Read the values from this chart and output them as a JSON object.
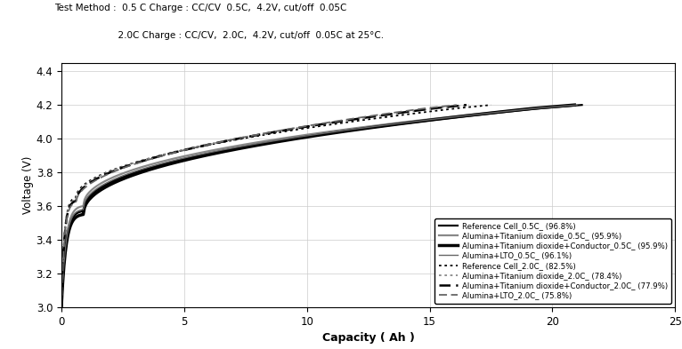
{
  "title_line1": "Test Method :  0.5 C Charge : CC/CV  0.5C,  4.2V, cut/off  0.05C",
  "title_line2": "                      2.0C Charge : CC/CV,  2.0C,  4.2V, cut/off  0.05C at 25°C.",
  "xlabel": "Capacity ( Ah )",
  "ylabel": "Voltage (V)",
  "xlim": [
    0,
    25
  ],
  "ylim": [
    3.0,
    4.45
  ],
  "yticks": [
    3.0,
    3.2,
    3.4,
    3.6,
    3.8,
    4.0,
    4.2,
    4.4
  ],
  "xticks": [
    0,
    5,
    10,
    15,
    20,
    25
  ],
  "legend_entries": [
    {
      "label": "Reference Cell_0.5C_ (96.8%)",
      "color": "#000000",
      "lw": 1.6,
      "ls": "solid"
    },
    {
      "label": "Alumina+Titanium dioxide_0.5C_ (95.9%)",
      "color": "#888888",
      "lw": 1.6,
      "ls": "solid"
    },
    {
      "label": "Alumina+Titanium dioxide+Conductor_0.5C_ (95.9%)",
      "color": "#000000",
      "lw": 2.5,
      "ls": "solid"
    },
    {
      "label": "Alumina+LTO_0.5C_ (96.1%)",
      "color": "#666666",
      "lw": 1.0,
      "ls": "solid"
    },
    {
      "label": "Reference Cell_2.0C_ (82.5%)",
      "color": "#000000",
      "lw": 1.3,
      "ls": "dotted"
    },
    {
      "label": "Alumina+Titanium dioxide_2.0C_ (78.4%)",
      "color": "#888888",
      "lw": 1.3,
      "ls": "dotted"
    },
    {
      "label": "Alumina+Titanium dioxide+Conductor_2.0C_ (77.9%)",
      "color": "#000000",
      "lw": 1.8,
      "ls": "dashed"
    },
    {
      "label": "Alumina+LTO_2.0C_ (75.8%)",
      "color": "#666666",
      "lw": 1.3,
      "ls": "dashed"
    }
  ],
  "background_color": "#ffffff",
  "grid_color": "#cccccc",
  "curves": [
    {
      "cap": 21.2,
      "v_start": 3.37,
      "v_knee": 3.57,
      "knee_x": 0.9,
      "mid_exp": 0.45,
      "idx": 0
    },
    {
      "cap": 20.9,
      "v_start": 3.4,
      "v_knee": 3.6,
      "knee_x": 0.9,
      "mid_exp": 0.45,
      "idx": 1
    },
    {
      "cap": 20.9,
      "v_start": 3.34,
      "v_knee": 3.55,
      "knee_x": 0.9,
      "mid_exp": 0.45,
      "idx": 2
    },
    {
      "cap": 21.0,
      "v_start": 3.38,
      "v_knee": 3.58,
      "knee_x": 0.9,
      "mid_exp": 0.45,
      "idx": 3
    },
    {
      "cap": 17.5,
      "v_start": 3.52,
      "v_knee": 3.65,
      "knee_x": 0.6,
      "mid_exp": 0.5,
      "idx": 4
    },
    {
      "cap": 16.6,
      "v_start": 3.51,
      "v_knee": 3.64,
      "knee_x": 0.6,
      "mid_exp": 0.5,
      "idx": 5
    },
    {
      "cap": 16.5,
      "v_start": 3.5,
      "v_knee": 3.63,
      "knee_x": 0.6,
      "mid_exp": 0.5,
      "idx": 6
    },
    {
      "cap": 16.1,
      "v_start": 3.49,
      "v_knee": 3.62,
      "knee_x": 0.6,
      "mid_exp": 0.5,
      "idx": 7
    }
  ]
}
